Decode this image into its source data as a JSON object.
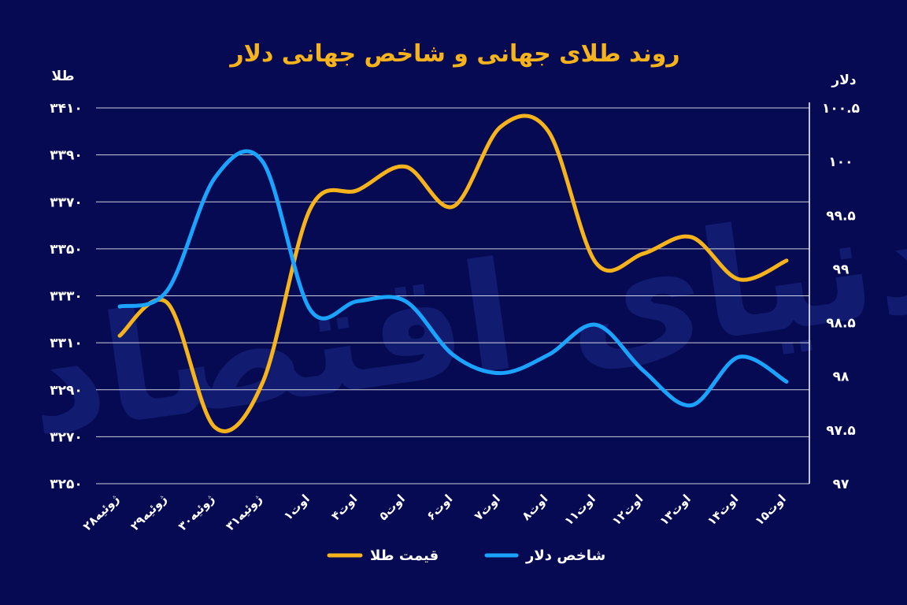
{
  "chart_data": {
    "type": "line",
    "title": "روند طلای جهانی و شاخص جهانی دلار",
    "left_axis_label": "طلا",
    "right_axis_label": "دلار",
    "categories": [
      "۲۸ژوئیه",
      "۲۹ژوئیه",
      "۳۰ژوئیه",
      "۳۱ژوئیه",
      "۱اوت",
      "۴اوت",
      "۵اوت",
      "۶اوت",
      "۷اوت",
      "۸اوت",
      "۱۱اوت",
      "۱۲اوت",
      "۱۳اوت",
      "۱۴اوت",
      "۱۵اوت"
    ],
    "left_ylim": [
      3250,
      3410
    ],
    "left_ticks": [
      3250,
      3270,
      3290,
      3310,
      3330,
      3350,
      3370,
      3390,
      3410
    ],
    "left_tick_labels": [
      "۳۲۵۰",
      "۳۲۷۰",
      "۳۲۹۰",
      "۳۳۱۰",
      "۳۳۳۰",
      "۳۳۵۰",
      "۳۳۷۰",
      "۳۳۹۰",
      "۳۴۱۰"
    ],
    "right_ylim": [
      97,
      100.5
    ],
    "right_ticks": [
      97,
      97.5,
      98,
      98.5,
      99,
      99.5,
      100,
      100.5
    ],
    "right_tick_labels": [
      "۹۷",
      "۹۷.۵",
      "۹۸",
      "۹۸.۵",
      "۹۹",
      "۹۹.۵",
      "۱۰۰",
      "۱۰۰.۵"
    ],
    "series": [
      {
        "name": "قیمت طلا",
        "axis": "left",
        "color": "#f7b31c",
        "values": [
          3313,
          3327,
          3274,
          3293,
          3367,
          3375,
          3385,
          3368,
          3402,
          3400,
          3344,
          3348,
          3355,
          3337,
          3345
        ]
      },
      {
        "name": "شاخص دلار",
        "axis": "right",
        "color": "#1aa3ff",
        "values": [
          98.65,
          98.8,
          99.85,
          100.0,
          98.62,
          98.7,
          98.7,
          98.2,
          98.03,
          98.2,
          98.48,
          98.05,
          97.73,
          98.18,
          97.95
        ]
      }
    ],
    "legend": "bottom-center",
    "grid": true
  },
  "watermark": "دنیای اقتصاد"
}
